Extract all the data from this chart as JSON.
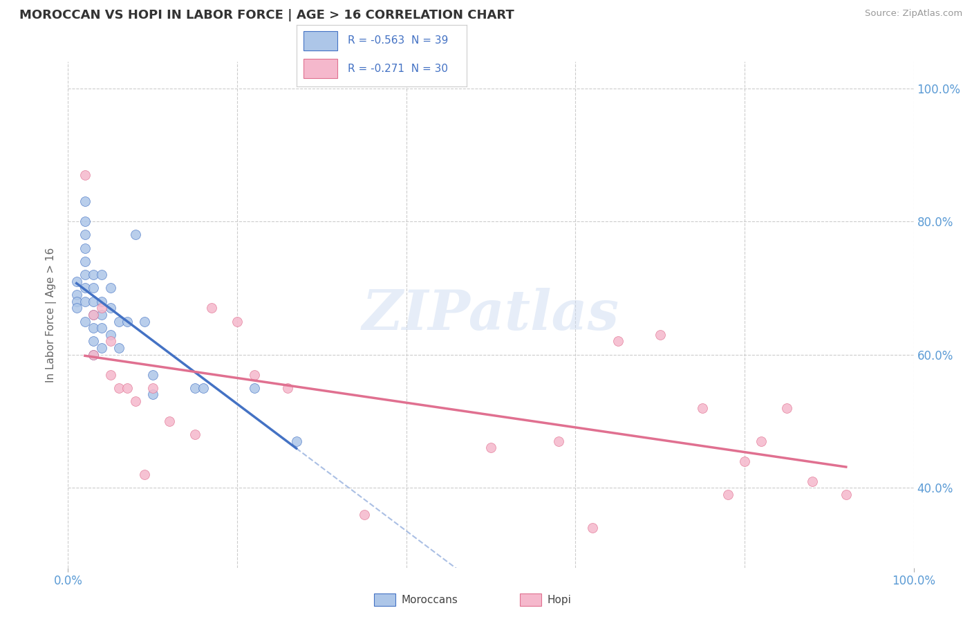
{
  "title": "MOROCCAN VS HOPI IN LABOR FORCE | AGE > 16 CORRELATION CHART",
  "source": "Source: ZipAtlas.com",
  "ylabel": "In Labor Force | Age > 16",
  "ytick_values": [
    0.4,
    0.6,
    0.8,
    1.0
  ],
  "ytick_labels": [
    "40.0%",
    "60.0%",
    "80.0%",
    "100.0%"
  ],
  "xlim": [
    0.0,
    1.0
  ],
  "ylim": [
    0.28,
    1.04
  ],
  "moroccan_R": -0.563,
  "moroccan_N": 39,
  "hopi_R": -0.271,
  "hopi_N": 30,
  "moroccan_color": "#adc6e8",
  "moroccan_line_color": "#4472c4",
  "hopi_color": "#f5b8cc",
  "hopi_line_color": "#e07090",
  "moroccan_x": [
    0.01,
    0.01,
    0.01,
    0.01,
    0.02,
    0.02,
    0.02,
    0.02,
    0.02,
    0.02,
    0.02,
    0.02,
    0.02,
    0.03,
    0.03,
    0.03,
    0.03,
    0.03,
    0.03,
    0.03,
    0.04,
    0.04,
    0.04,
    0.04,
    0.04,
    0.05,
    0.05,
    0.05,
    0.06,
    0.06,
    0.07,
    0.08,
    0.09,
    0.1,
    0.1,
    0.15,
    0.16,
    0.22,
    0.27
  ],
  "moroccan_y": [
    0.71,
    0.69,
    0.68,
    0.67,
    0.83,
    0.8,
    0.78,
    0.76,
    0.74,
    0.72,
    0.7,
    0.68,
    0.65,
    0.72,
    0.7,
    0.68,
    0.66,
    0.64,
    0.62,
    0.6,
    0.72,
    0.68,
    0.66,
    0.64,
    0.61,
    0.7,
    0.67,
    0.63,
    0.65,
    0.61,
    0.65,
    0.78,
    0.65,
    0.57,
    0.54,
    0.55,
    0.55,
    0.55,
    0.47
  ],
  "hopi_x": [
    0.02,
    0.03,
    0.03,
    0.04,
    0.05,
    0.05,
    0.06,
    0.07,
    0.08,
    0.09,
    0.1,
    0.12,
    0.15,
    0.17,
    0.2,
    0.22,
    0.26,
    0.35,
    0.5,
    0.58,
    0.62,
    0.65,
    0.7,
    0.75,
    0.78,
    0.8,
    0.82,
    0.85,
    0.88,
    0.92
  ],
  "hopi_y": [
    0.87,
    0.66,
    0.6,
    0.67,
    0.62,
    0.57,
    0.55,
    0.55,
    0.53,
    0.42,
    0.55,
    0.5,
    0.48,
    0.67,
    0.65,
    0.57,
    0.55,
    0.36,
    0.46,
    0.47,
    0.34,
    0.62,
    0.63,
    0.52,
    0.39,
    0.44,
    0.47,
    0.52,
    0.41,
    0.39
  ],
  "watermark": "ZIPatlas",
  "background_color": "#ffffff",
  "plot_bg_color": "#ffffff",
  "grid_color": "#cccccc",
  "title_color": "#333333",
  "axis_label_color": "#5b9bd5",
  "legend_r_color": "#4472c4",
  "grid_yticks": [
    0.4,
    0.6,
    0.8,
    1.0
  ],
  "grid_xticks": [
    0.0,
    0.2,
    0.4,
    0.6,
    0.8,
    1.0
  ]
}
